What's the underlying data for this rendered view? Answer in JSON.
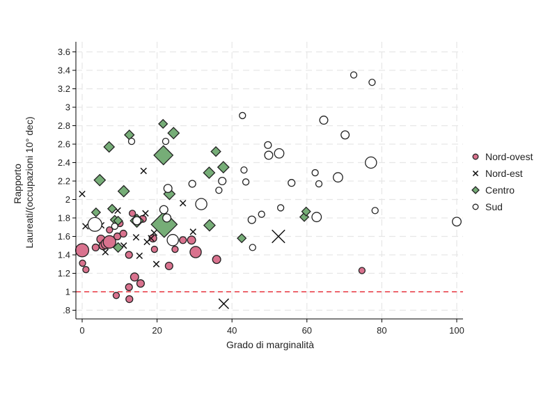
{
  "chart_data": {
    "type": "scatter",
    "xlabel": "Grado di marginalità",
    "ylabel_lines": [
      "Rapporto",
      "Laureati/(occupazioni 10° dec)"
    ],
    "xlim": [
      -1,
      101
    ],
    "ylim": [
      0.78,
      3.66
    ],
    "xticks": [
      0,
      20,
      40,
      60,
      80,
      100
    ],
    "xtick_labels": [
      "0",
      "20",
      "40",
      "60",
      "80",
      "100"
    ],
    "yticks": [
      0.8,
      1,
      1.2,
      1.4,
      1.6,
      1.8,
      2,
      2.2,
      2.4,
      2.6,
      2.8,
      3,
      3.2,
      3.4,
      3.6
    ],
    "ytick_labels": [
      ".8",
      "1",
      "1.2",
      "1.4",
      "1.6",
      "1.8",
      "2",
      "2.2",
      "2.4",
      "2.6",
      "2.8",
      "3",
      "3.2",
      "3.4",
      "3.6"
    ],
    "reference_line": {
      "y": 1,
      "style": "dashed",
      "color": "#e8343f"
    },
    "grid": true,
    "legend": {
      "position": "right"
    },
    "series": [
      {
        "name": "Nord-ovest",
        "marker": "circle",
        "fill": "#d9728e",
        "points": [
          {
            "x": 0,
            "y": 1.45,
            "s": 2.1
          },
          {
            "x": 0.1,
            "y": 1.31,
            "s": 1.0
          },
          {
            "x": 1,
            "y": 1.24,
            "s": 1.0
          },
          {
            "x": 3.6,
            "y": 1.48,
            "s": 1.1
          },
          {
            "x": 5,
            "y": 1.57,
            "s": 1.3
          },
          {
            "x": 5.6,
            "y": 1.5,
            "s": 1.3
          },
          {
            "x": 6.4,
            "y": 1.52,
            "s": 1.6
          },
          {
            "x": 7.3,
            "y": 1.54,
            "s": 2.0
          },
          {
            "x": 7.3,
            "y": 1.67,
            "s": 1.0
          },
          {
            "x": 9.4,
            "y": 1.6,
            "s": 1.1
          },
          {
            "x": 10.1,
            "y": 1.74,
            "s": 1.0
          },
          {
            "x": 11,
            "y": 1.63,
            "s": 1.1
          },
          {
            "x": 12.5,
            "y": 1.4,
            "s": 1.1
          },
          {
            "x": 13.4,
            "y": 1.85,
            "s": 1.0
          },
          {
            "x": 14,
            "y": 1.16,
            "s": 1.3
          },
          {
            "x": 15.6,
            "y": 1.09,
            "s": 1.2
          },
          {
            "x": 16.2,
            "y": 1.79,
            "s": 1.1
          },
          {
            "x": 12.5,
            "y": 1.05,
            "s": 1.1
          },
          {
            "x": 12.6,
            "y": 0.92,
            "s": 1.1
          },
          {
            "x": 9.1,
            "y": 0.96,
            "s": 1.0
          },
          {
            "x": 18.9,
            "y": 1.58,
            "s": 1.2
          },
          {
            "x": 19.3,
            "y": 1.46,
            "s": 1.0
          },
          {
            "x": 23.2,
            "y": 1.28,
            "s": 1.2
          },
          {
            "x": 24.8,
            "y": 1.46,
            "s": 1.0
          },
          {
            "x": 26.9,
            "y": 1.56,
            "s": 1.1
          },
          {
            "x": 29.2,
            "y": 1.56,
            "s": 1.3
          },
          {
            "x": 30.3,
            "y": 1.43,
            "s": 1.8
          },
          {
            "x": 35.9,
            "y": 1.35,
            "s": 1.3
          },
          {
            "x": 74.7,
            "y": 1.23,
            "s": 1.0
          }
        ]
      },
      {
        "name": "Nord-est",
        "marker": "x",
        "fill": "none",
        "points": [
          {
            "x": 0,
            "y": 2.06,
            "s": 1.0
          },
          {
            "x": 0.9,
            "y": 1.71,
            "s": 1.0
          },
          {
            "x": 5.1,
            "y": 1.72,
            "s": 1.0
          },
          {
            "x": 6.2,
            "y": 1.43,
            "s": 1.0
          },
          {
            "x": 9.5,
            "y": 1.88,
            "s": 1.0
          },
          {
            "x": 11.1,
            "y": 1.5,
            "s": 1.0
          },
          {
            "x": 14.4,
            "y": 1.59,
            "s": 1.0
          },
          {
            "x": 15.3,
            "y": 1.39,
            "s": 1.0
          },
          {
            "x": 16.4,
            "y": 2.31,
            "s": 1.0
          },
          {
            "x": 16.9,
            "y": 1.85,
            "s": 1.0
          },
          {
            "x": 17.3,
            "y": 1.54,
            "s": 1.0
          },
          {
            "x": 18.4,
            "y": 1.58,
            "s": 1.0
          },
          {
            "x": 19.2,
            "y": 1.64,
            "s": 1.0
          },
          {
            "x": 19.8,
            "y": 1.3,
            "s": 1.0
          },
          {
            "x": 22.4,
            "y": 1.71,
            "s": 1.0
          },
          {
            "x": 26.9,
            "y": 1.96,
            "s": 1.0
          },
          {
            "x": 29.6,
            "y": 1.65,
            "s": 1.0
          },
          {
            "x": 37.8,
            "y": 0.87,
            "s": 1.7
          },
          {
            "x": 52.4,
            "y": 1.6,
            "s": 2.2
          }
        ]
      },
      {
        "name": "Centro",
        "marker": "diamond",
        "fill": "#76ad77",
        "points": [
          {
            "x": 3.7,
            "y": 1.86,
            "s": 1.0
          },
          {
            "x": 4.7,
            "y": 2.21,
            "s": 1.3
          },
          {
            "x": 7.2,
            "y": 2.57,
            "s": 1.2
          },
          {
            "x": 8,
            "y": 1.9,
            "s": 1.0
          },
          {
            "x": 8.7,
            "y": 1.78,
            "s": 1.0
          },
          {
            "x": 9.6,
            "y": 1.77,
            "s": 1.0
          },
          {
            "x": 9.6,
            "y": 1.48,
            "s": 1.1
          },
          {
            "x": 11.1,
            "y": 2.09,
            "s": 1.3
          },
          {
            "x": 12.6,
            "y": 2.7,
            "s": 1.1
          },
          {
            "x": 14.6,
            "y": 1.77,
            "s": 1.5
          },
          {
            "x": 21.6,
            "y": 2.82,
            "s": 1.0
          },
          {
            "x": 21.7,
            "y": 2.48,
            "s": 2.2
          },
          {
            "x": 21.9,
            "y": 1.73,
            "s": 3.0
          },
          {
            "x": 23.3,
            "y": 2.06,
            "s": 1.3
          },
          {
            "x": 24.4,
            "y": 2.72,
            "s": 1.3
          },
          {
            "x": 33.9,
            "y": 2.29,
            "s": 1.3
          },
          {
            "x": 34,
            "y": 1.72,
            "s": 1.3
          },
          {
            "x": 35.7,
            "y": 2.52,
            "s": 1.1
          },
          {
            "x": 37.7,
            "y": 2.35,
            "s": 1.3
          },
          {
            "x": 42.6,
            "y": 1.58,
            "s": 1.0
          },
          {
            "x": 59.3,
            "y": 1.81,
            "s": 1.0
          },
          {
            "x": 59.8,
            "y": 1.87,
            "s": 1.0
          }
        ]
      },
      {
        "name": "Sud",
        "marker": "circle-open",
        "fill": "#ffffff",
        "points": [
          {
            "x": 3.4,
            "y": 1.73,
            "s": 2.2
          },
          {
            "x": 8.7,
            "y": 1.71,
            "s": 1.0
          },
          {
            "x": 13.2,
            "y": 2.63,
            "s": 1.0
          },
          {
            "x": 14.6,
            "y": 1.77,
            "s": 1.3
          },
          {
            "x": 21.8,
            "y": 1.89,
            "s": 1.3
          },
          {
            "x": 22.3,
            "y": 2.63,
            "s": 1.0
          },
          {
            "x": 22.6,
            "y": 1.8,
            "s": 1.3
          },
          {
            "x": 22.9,
            "y": 2.12,
            "s": 1.3
          },
          {
            "x": 24.2,
            "y": 1.56,
            "s": 1.8
          },
          {
            "x": 29.4,
            "y": 2.17,
            "s": 1.1
          },
          {
            "x": 31.8,
            "y": 1.95,
            "s": 1.8
          },
          {
            "x": 36.5,
            "y": 2.1,
            "s": 1.0
          },
          {
            "x": 37.4,
            "y": 2.2,
            "s": 1.2
          },
          {
            "x": 42.8,
            "y": 2.91,
            "s": 1.0
          },
          {
            "x": 43.2,
            "y": 2.32,
            "s": 1.0
          },
          {
            "x": 43.7,
            "y": 2.19,
            "s": 1.0
          },
          {
            "x": 45.3,
            "y": 1.78,
            "s": 1.2
          },
          {
            "x": 45.5,
            "y": 1.48,
            "s": 1.0
          },
          {
            "x": 47.9,
            "y": 1.84,
            "s": 1.0
          },
          {
            "x": 49.6,
            "y": 2.59,
            "s": 1.1
          },
          {
            "x": 49.8,
            "y": 2.48,
            "s": 1.3
          },
          {
            "x": 52.6,
            "y": 2.5,
            "s": 1.5
          },
          {
            "x": 53,
            "y": 1.91,
            "s": 1.0
          },
          {
            "x": 55.9,
            "y": 2.18,
            "s": 1.1
          },
          {
            "x": 62.2,
            "y": 2.29,
            "s": 1.0
          },
          {
            "x": 62.6,
            "y": 1.81,
            "s": 1.5
          },
          {
            "x": 63.2,
            "y": 2.17,
            "s": 1.0
          },
          {
            "x": 64.5,
            "y": 2.86,
            "s": 1.3
          },
          {
            "x": 68.3,
            "y": 2.24,
            "s": 1.5
          },
          {
            "x": 70.2,
            "y": 2.7,
            "s": 1.3
          },
          {
            "x": 72.5,
            "y": 3.35,
            "s": 1.0
          },
          {
            "x": 77.1,
            "y": 2.4,
            "s": 1.8
          },
          {
            "x": 77.4,
            "y": 3.27,
            "s": 1.0
          },
          {
            "x": 78.2,
            "y": 1.88,
            "s": 1.0
          },
          {
            "x": 100,
            "y": 1.76,
            "s": 1.4
          }
        ]
      }
    ]
  }
}
